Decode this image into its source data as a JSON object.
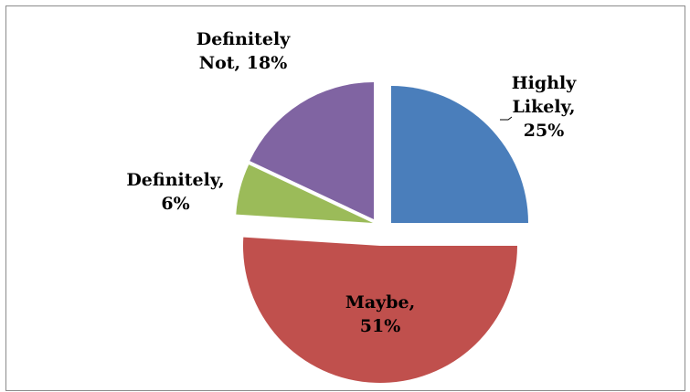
{
  "chart_data": {
    "type": "pie",
    "exploded": true,
    "slices": [
      {
        "label_lines": [
          "Highly",
          "Likely,",
          "25%"
        ],
        "name": "Highly Likely",
        "value": 25,
        "color": "#4a7ebb"
      },
      {
        "label_lines": [
          "Maybe,",
          "51%"
        ],
        "name": "Maybe",
        "value": 51,
        "color": "#c0504d"
      },
      {
        "label_lines": [
          "Definitely,",
          "6%"
        ],
        "name": "Definitely",
        "value": 6,
        "color": "#9bbb59"
      },
      {
        "label_lines": [
          "Definitely",
          "Not, 18%"
        ],
        "name": "Definitely Not",
        "value": 18,
        "color": "#8064a2"
      }
    ]
  }
}
